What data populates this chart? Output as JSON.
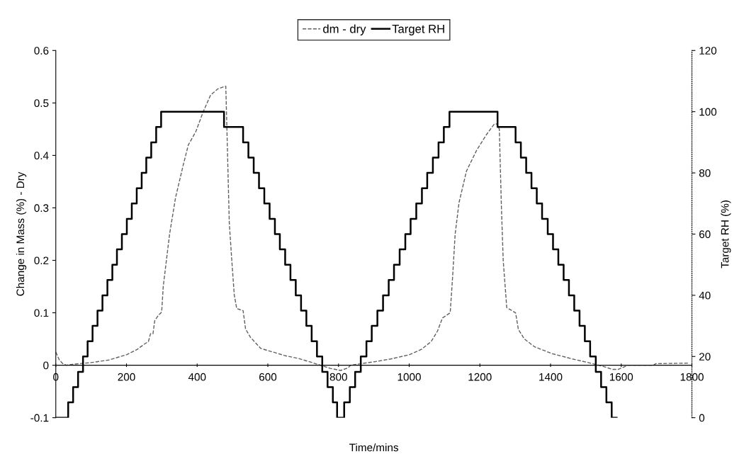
{
  "chart_data": {
    "type": "line",
    "xlabel": "Time/mins",
    "ylabel": "Change in Mass (%) - Dry",
    "y2label": "Target RH (%)",
    "xlim": [
      0,
      1800
    ],
    "xticks": [
      0,
      200,
      400,
      600,
      800,
      1000,
      1200,
      1400,
      1600,
      1800
    ],
    "ylim": [
      -0.1,
      0.6
    ],
    "yticks": [
      -0.1,
      0,
      0.1,
      0.2,
      0.3,
      0.4,
      0.5,
      0.6
    ],
    "y2lim": [
      0,
      120
    ],
    "y2ticks": [
      0,
      20,
      40,
      60,
      80,
      100,
      120
    ],
    "grid": false,
    "legend": "top",
    "marker": "none",
    "series": [
      {
        "name": "dm - dry",
        "color": "#606060",
        "line_style": "dashed",
        "x": [
          0,
          10,
          20,
          30,
          50,
          100,
          150,
          200,
          230,
          250,
          262,
          268,
          275,
          280,
          290,
          298,
          300,
          304,
          322,
          339,
          360,
          375,
          396,
          417,
          438,
          459,
          481,
          484,
          491,
          498,
          505,
          512,
          530,
          537,
          551,
          580,
          615,
          650,
          686,
          721,
          749,
          777,
          806,
          827,
          834,
          905,
          948,
          1000,
          1034,
          1062,
          1080,
          1094,
          1116,
          1123,
          1130,
          1141,
          1162,
          1191,
          1219,
          1241,
          1248,
          1255,
          1261,
          1266,
          1276,
          1301,
          1309,
          1326,
          1355,
          1405,
          1462,
          1519,
          1548,
          1576,
          1591,
          1619,
          1691,
          1698,
          1789
        ],
        "values": [
          0.025,
          0.01,
          0.003,
          0.0,
          0.002,
          0.005,
          0.01,
          0.02,
          0.03,
          0.04,
          0.045,
          0.06,
          0.06,
          0.085,
          0.095,
          0.1,
          0.106,
          0.15,
          0.25,
          0.32,
          0.38,
          0.42,
          0.445,
          0.483,
          0.515,
          0.527,
          0.532,
          0.455,
          0.27,
          0.2,
          0.134,
          0.108,
          0.104,
          0.069,
          0.053,
          0.032,
          0.025,
          0.018,
          0.013,
          0.006,
          0.0,
          -0.006,
          -0.01,
          -0.005,
          0.0,
          0.007,
          0.012,
          0.02,
          0.03,
          0.045,
          0.065,
          0.09,
          0.1,
          0.17,
          0.25,
          0.31,
          0.37,
          0.41,
          0.44,
          0.46,
          0.46,
          0.45,
          0.3,
          0.2,
          0.11,
          0.1,
          0.068,
          0.05,
          0.035,
          0.022,
          0.012,
          0.003,
          -0.002,
          -0.008,
          -0.008,
          0.0,
          0.0,
          0.003,
          0.004
        ]
      },
      {
        "name": "Target RH",
        "type": "step",
        "axis": "y2",
        "color": "#000000",
        "line_style": "solid",
        "x": [
          0,
          35,
          49,
          63,
          77,
          90,
          104,
          118,
          132,
          146,
          160,
          173,
          187,
          201,
          215,
          229,
          243,
          256,
          270,
          284,
          298,
          476,
          530,
          545,
          560,
          575,
          590,
          605,
          620,
          634,
          649,
          664,
          679,
          694,
          709,
          724,
          739,
          754,
          769,
          784,
          796,
          816,
          832,
          847,
          863,
          879,
          894,
          910,
          926,
          942,
          957,
          973,
          989,
          1004,
          1020,
          1036,
          1051,
          1067,
          1083,
          1098,
          1114,
          1250,
          1301,
          1316,
          1331,
          1346,
          1361,
          1376,
          1392,
          1407,
          1422,
          1437,
          1452,
          1467,
          1482,
          1497,
          1512,
          1528,
          1543,
          1558,
          1573,
          1587
        ],
        "values": [
          0,
          5,
          10,
          15,
          20,
          25,
          30,
          35,
          40,
          45,
          50,
          55,
          60,
          65,
          70,
          75,
          80,
          85,
          90,
          95,
          100,
          95,
          90,
          85,
          80,
          75,
          70,
          65,
          60,
          55,
          50,
          45,
          40,
          35,
          30,
          25,
          20,
          15,
          10,
          5,
          0,
          5,
          10,
          15,
          20,
          25,
          30,
          35,
          40,
          45,
          50,
          55,
          60,
          65,
          70,
          75,
          80,
          85,
          90,
          95,
          100,
          95,
          90,
          85,
          80,
          75,
          70,
          65,
          60,
          55,
          50,
          45,
          40,
          35,
          30,
          25,
          20,
          15,
          10,
          5,
          0,
          0
        ]
      }
    ]
  }
}
